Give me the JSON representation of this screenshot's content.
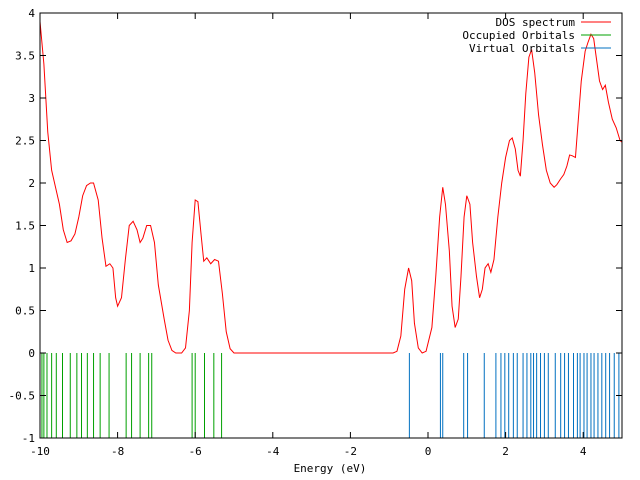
{
  "chart_data": {
    "type": "line",
    "title": "",
    "xlabel": "Energy (eV)",
    "ylabel": "",
    "xlim": [
      -10,
      5
    ],
    "ylim": [
      -1,
      4
    ],
    "xticks": [
      -10,
      -8,
      -6,
      -4,
      -2,
      0,
      2,
      4
    ],
    "yticks": [
      -1,
      -0.5,
      0,
      0.5,
      1,
      1.5,
      2,
      2.5,
      3,
      3.5,
      4
    ],
    "grid": false,
    "legend_position": "top-right",
    "series": [
      {
        "name": "DOS spectrum",
        "color": "#ff0000",
        "style": "line",
        "points": [
          [
            -10.0,
            3.9
          ],
          [
            -9.9,
            3.4
          ],
          [
            -9.8,
            2.6
          ],
          [
            -9.7,
            2.15
          ],
          [
            -9.6,
            1.95
          ],
          [
            -9.5,
            1.75
          ],
          [
            -9.4,
            1.45
          ],
          [
            -9.3,
            1.3
          ],
          [
            -9.2,
            1.32
          ],
          [
            -9.1,
            1.4
          ],
          [
            -9.0,
            1.6
          ],
          [
            -8.9,
            1.85
          ],
          [
            -8.8,
            1.97
          ],
          [
            -8.7,
            2.0
          ],
          [
            -8.62,
            2.0
          ],
          [
            -8.5,
            1.8
          ],
          [
            -8.4,
            1.35
          ],
          [
            -8.3,
            1.02
          ],
          [
            -8.2,
            1.05
          ],
          [
            -8.12,
            1.0
          ],
          [
            -8.05,
            0.65
          ],
          [
            -8.0,
            0.55
          ],
          [
            -7.9,
            0.65
          ],
          [
            -7.8,
            1.1
          ],
          [
            -7.7,
            1.5
          ],
          [
            -7.6,
            1.55
          ],
          [
            -7.5,
            1.45
          ],
          [
            -7.42,
            1.3
          ],
          [
            -7.35,
            1.35
          ],
          [
            -7.25,
            1.5
          ],
          [
            -7.15,
            1.5
          ],
          [
            -7.05,
            1.3
          ],
          [
            -6.95,
            0.8
          ],
          [
            -6.8,
            0.4
          ],
          [
            -6.7,
            0.15
          ],
          [
            -6.6,
            0.03
          ],
          [
            -6.5,
            0.0
          ],
          [
            -6.35,
            0.0
          ],
          [
            -6.25,
            0.06
          ],
          [
            -6.15,
            0.5
          ],
          [
            -6.08,
            1.3
          ],
          [
            -6.0,
            1.8
          ],
          [
            -5.93,
            1.78
          ],
          [
            -5.85,
            1.4
          ],
          [
            -5.78,
            1.08
          ],
          [
            -5.7,
            1.12
          ],
          [
            -5.6,
            1.05
          ],
          [
            -5.5,
            1.1
          ],
          [
            -5.4,
            1.08
          ],
          [
            -5.3,
            0.7
          ],
          [
            -5.2,
            0.25
          ],
          [
            -5.1,
            0.05
          ],
          [
            -5.0,
            0.0
          ],
          [
            -4.5,
            0.0
          ],
          [
            -3.0,
            0.0
          ],
          [
            -1.5,
            0.0
          ],
          [
            -0.9,
            0.0
          ],
          [
            -0.8,
            0.02
          ],
          [
            -0.7,
            0.2
          ],
          [
            -0.6,
            0.75
          ],
          [
            -0.5,
            1.0
          ],
          [
            -0.42,
            0.85
          ],
          [
            -0.35,
            0.35
          ],
          [
            -0.25,
            0.06
          ],
          [
            -0.15,
            0.0
          ],
          [
            -0.05,
            0.02
          ],
          [
            0.1,
            0.3
          ],
          [
            0.2,
            0.9
          ],
          [
            0.3,
            1.6
          ],
          [
            0.38,
            1.95
          ],
          [
            0.45,
            1.75
          ],
          [
            0.55,
            1.2
          ],
          [
            0.62,
            0.55
          ],
          [
            0.7,
            0.3
          ],
          [
            0.78,
            0.4
          ],
          [
            0.85,
            0.9
          ],
          [
            0.93,
            1.6
          ],
          [
            1.0,
            1.85
          ],
          [
            1.08,
            1.75
          ],
          [
            1.15,
            1.3
          ],
          [
            1.25,
            0.9
          ],
          [
            1.33,
            0.65
          ],
          [
            1.4,
            0.75
          ],
          [
            1.47,
            1.0
          ],
          [
            1.55,
            1.05
          ],
          [
            1.62,
            0.95
          ],
          [
            1.7,
            1.1
          ],
          [
            1.8,
            1.6
          ],
          [
            1.9,
            2.0
          ],
          [
            2.0,
            2.3
          ],
          [
            2.1,
            2.5
          ],
          [
            2.17,
            2.53
          ],
          [
            2.25,
            2.4
          ],
          [
            2.32,
            2.15
          ],
          [
            2.38,
            2.08
          ],
          [
            2.45,
            2.5
          ],
          [
            2.52,
            3.05
          ],
          [
            2.6,
            3.48
          ],
          [
            2.67,
            3.57
          ],
          [
            2.75,
            3.3
          ],
          [
            2.85,
            2.8
          ],
          [
            2.95,
            2.45
          ],
          [
            3.05,
            2.15
          ],
          [
            3.15,
            2.0
          ],
          [
            3.25,
            1.95
          ],
          [
            3.32,
            1.98
          ],
          [
            3.42,
            2.05
          ],
          [
            3.5,
            2.1
          ],
          [
            3.58,
            2.2
          ],
          [
            3.65,
            2.33
          ],
          [
            3.72,
            2.32
          ],
          [
            3.8,
            2.3
          ],
          [
            3.85,
            2.6
          ],
          [
            3.95,
            3.2
          ],
          [
            4.05,
            3.55
          ],
          [
            4.12,
            3.65
          ],
          [
            4.2,
            3.75
          ],
          [
            4.27,
            3.7
          ],
          [
            4.33,
            3.5
          ],
          [
            4.42,
            3.2
          ],
          [
            4.5,
            3.1
          ],
          [
            4.57,
            3.15
          ],
          [
            4.65,
            2.95
          ],
          [
            4.75,
            2.75
          ],
          [
            4.85,
            2.65
          ],
          [
            4.95,
            2.5
          ],
          [
            5.0,
            2.48
          ]
        ]
      },
      {
        "name": "Occupied Orbitals",
        "color": "#00a000",
        "style": "impulses",
        "baseline": 0,
        "height": -1,
        "energies": [
          -9.95,
          -9.9,
          -9.82,
          -9.7,
          -9.58,
          -9.42,
          -9.22,
          -9.05,
          -8.93,
          -8.78,
          -8.62,
          -8.45,
          -8.22,
          -7.78,
          -7.64,
          -7.42,
          -7.2,
          -7.12,
          -6.08,
          -6.0,
          -5.76,
          -5.52,
          -5.32
        ]
      },
      {
        "name": "Virtual Orbitals",
        "color": "#0070c0",
        "style": "impulses",
        "baseline": 0,
        "height": -1,
        "energies": [
          -0.48,
          0.32,
          0.38,
          0.92,
          1.02,
          1.45,
          1.75,
          1.88,
          1.98,
          2.08,
          2.2,
          2.3,
          2.45,
          2.55,
          2.65,
          2.72,
          2.8,
          2.9,
          3.0,
          3.1,
          3.28,
          3.42,
          3.52,
          3.62,
          3.75,
          3.85,
          3.92,
          4.02,
          4.1,
          4.2,
          4.28,
          4.38,
          4.48,
          4.58,
          4.68,
          4.8,
          4.92
        ]
      }
    ]
  }
}
